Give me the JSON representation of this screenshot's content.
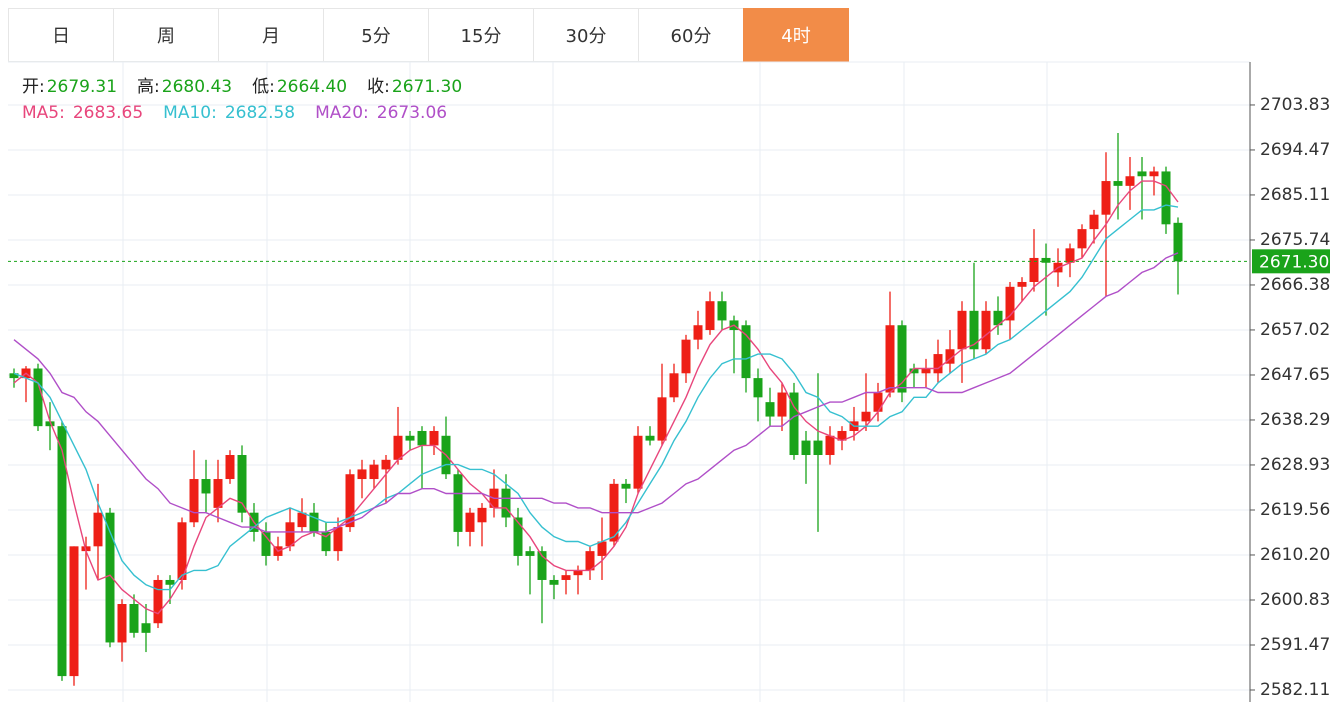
{
  "tabs": [
    "日",
    "周",
    "月",
    "5分",
    "15分",
    "30分",
    "60分",
    "4时"
  ],
  "active_tab": 7,
  "chart_data": {
    "type": "candlestick",
    "info": [
      {
        "label": "开:",
        "value": "2679.31"
      },
      {
        "label": "高:",
        "value": "2680.43"
      },
      {
        "label": "低:",
        "value": "2664.40"
      },
      {
        "label": "收:",
        "value": "2671.30"
      }
    ],
    "up_color": "#ee1f16",
    "down_color": "#1aa31a",
    "ylim": [
      2579.61,
      2712.77
    ],
    "yticks": [
      2703.83,
      2694.47,
      2685.11,
      2675.74,
      2666.38,
      2657.02,
      2647.65,
      2638.29,
      2628.93,
      2619.56,
      {
        "value": 2610.2,
        "label": "2610.20"
      },
      2600.83,
      2591.47,
      2582.11
    ],
    "grid": true,
    "last_price": {
      "value": 2671.3,
      "label": "2671.30"
    },
    "candles": [
      {
        "open": 2648,
        "high": 2649,
        "low": 2645,
        "close": 2647
      },
      {
        "open": 2647,
        "high": 2649.5,
        "low": 2642,
        "close": 2649
      },
      {
        "open": 2649,
        "high": 2650,
        "low": 2636,
        "close": 2637
      },
      {
        "open": 2638,
        "high": 2642,
        "low": 2632,
        "close": 2637
      },
      {
        "open": 2637,
        "high": 2638,
        "low": 2584,
        "close": 2585
      },
      {
        "open": 2585,
        "high": 2612,
        "low": 2583,
        "close": 2612
      },
      {
        "open": 2611,
        "high": 2614,
        "low": 2603,
        "close": 2612
      },
      {
        "open": 2612,
        "high": 2625,
        "low": 2605,
        "close": 2619
      },
      {
        "open": 2619,
        "high": 2620,
        "low": 2591,
        "close": 2592
      },
      {
        "open": 2592,
        "high": 2601,
        "low": 2588,
        "close": 2600
      },
      {
        "open": 2600,
        "high": 2602,
        "low": 2593,
        "close": 2594
      },
      {
        "open": 2596,
        "high": 2600,
        "low": 2590,
        "close": 2594
      },
      {
        "open": 2596,
        "high": 2606,
        "low": 2595,
        "close": 2605
      },
      {
        "open": 2605,
        "high": 2606,
        "low": 2600,
        "close": 2604
      },
      {
        "open": 2605,
        "high": 2618,
        "low": 2603,
        "close": 2617
      },
      {
        "open": 2617,
        "high": 2632,
        "low": 2616,
        "close": 2626
      },
      {
        "open": 2626,
        "high": 2630,
        "low": 2619,
        "close": 2623
      },
      {
        "open": 2620,
        "high": 2630,
        "low": 2617,
        "close": 2626
      },
      {
        "open": 2626,
        "high": 2632,
        "low": 2625,
        "close": 2631
      },
      {
        "open": 2631,
        "high": 2633,
        "low": 2617,
        "close": 2619
      },
      {
        "open": 2619,
        "high": 2621,
        "low": 2613,
        "close": 2615
      },
      {
        "open": 2615,
        "high": 2617,
        "low": 2608,
        "close": 2610
      },
      {
        "open": 2610,
        "high": 2614,
        "low": 2609,
        "close": 2612
      },
      {
        "open": 2612,
        "high": 2620,
        "low": 2611,
        "close": 2617
      },
      {
        "open": 2616,
        "high": 2622,
        "low": 2615,
        "close": 2619
      },
      {
        "open": 2619,
        "high": 2621,
        "low": 2614,
        "close": 2615
      },
      {
        "open": 2615,
        "high": 2617,
        "low": 2610,
        "close": 2611
      },
      {
        "open": 2611,
        "high": 2618,
        "low": 2609,
        "close": 2616
      },
      {
        "open": 2616,
        "high": 2628,
        "low": 2615,
        "close": 2627
      },
      {
        "open": 2626,
        "high": 2630,
        "low": 2622,
        "close": 2628
      },
      {
        "open": 2626,
        "high": 2630,
        "low": 2624,
        "close": 2629
      },
      {
        "open": 2628,
        "high": 2631,
        "low": 2621,
        "close": 2630
      },
      {
        "open": 2630,
        "high": 2641,
        "low": 2629,
        "close": 2635
      },
      {
        "open": 2635,
        "high": 2636,
        "low": 2632,
        "close": 2634
      },
      {
        "open": 2636,
        "high": 2637,
        "low": 2624,
        "close": 2633
      },
      {
        "open": 2633,
        "high": 2637,
        "low": 2631,
        "close": 2636
      },
      {
        "open": 2635,
        "high": 2639,
        "low": 2626,
        "close": 2627
      },
      {
        "open": 2627,
        "high": 2628,
        "low": 2612,
        "close": 2615
      },
      {
        "open": 2615,
        "high": 2620,
        "low": 2612,
        "close": 2619
      },
      {
        "open": 2617,
        "high": 2621,
        "low": 2612,
        "close": 2620
      },
      {
        "open": 2620,
        "high": 2628,
        "low": 2618,
        "close": 2624
      },
      {
        "open": 2624,
        "high": 2627,
        "low": 2616,
        "close": 2618
      },
      {
        "open": 2618,
        "high": 2620,
        "low": 2608,
        "close": 2610
      },
      {
        "open": 2611,
        "high": 2612,
        "low": 2602,
        "close": 2610
      },
      {
        "open": 2611,
        "high": 2612,
        "low": 2596,
        "close": 2605
      },
      {
        "open": 2605,
        "high": 2606,
        "low": 2601,
        "close": 2604
      },
      {
        "open": 2605,
        "high": 2607,
        "low": 2602,
        "close": 2606
      },
      {
        "open": 2606,
        "high": 2608,
        "low": 2602,
        "close": 2607
      },
      {
        "open": 2607,
        "high": 2612,
        "low": 2605,
        "close": 2611
      },
      {
        "open": 2610,
        "high": 2618,
        "low": 2605,
        "close": 2613
      },
      {
        "open": 2613,
        "high": 2626,
        "low": 2612,
        "close": 2625
      },
      {
        "open": 2625,
        "high": 2626,
        "low": 2621,
        "close": 2624
      },
      {
        "open": 2624,
        "high": 2637,
        "low": 2623,
        "close": 2635
      },
      {
        "open": 2635,
        "high": 2637,
        "low": 2633,
        "close": 2634
      },
      {
        "open": 2634,
        "high": 2650,
        "low": 2633,
        "close": 2643
      },
      {
        "open": 2643,
        "high": 2650,
        "low": 2642,
        "close": 2648
      },
      {
        "open": 2648,
        "high": 2656,
        "low": 2646,
        "close": 2655
      },
      {
        "open": 2655,
        "high": 2661,
        "low": 2653,
        "close": 2658
      },
      {
        "open": 2657,
        "high": 2665,
        "low": 2656,
        "close": 2663
      },
      {
        "open": 2663,
        "high": 2665,
        "low": 2657,
        "close": 2659
      },
      {
        "open": 2659,
        "high": 2660,
        "low": 2648,
        "close": 2657
      },
      {
        "open": 2658,
        "high": 2659,
        "low": 2644,
        "close": 2647
      },
      {
        "open": 2647,
        "high": 2649,
        "low": 2638,
        "close": 2643
      },
      {
        "open": 2642,
        "high": 2645,
        "low": 2637,
        "close": 2639
      },
      {
        "open": 2639,
        "high": 2646,
        "low": 2636,
        "close": 2644
      },
      {
        "open": 2644,
        "high": 2646,
        "low": 2630,
        "close": 2631
      },
      {
        "open": 2634,
        "high": 2636,
        "low": 2625,
        "close": 2631
      },
      {
        "open": 2634,
        "high": 2648,
        "low": 2615,
        "close": 2631
      },
      {
        "open": 2631,
        "high": 2637,
        "low": 2629,
        "close": 2635
      },
      {
        "open": 2634,
        "high": 2637,
        "low": 2632,
        "close": 2636
      },
      {
        "open": 2636,
        "high": 2641,
        "low": 2634,
        "close": 2638
      },
      {
        "open": 2638,
        "high": 2648,
        "low": 2636,
        "close": 2640
      },
      {
        "open": 2640,
        "high": 2646,
        "low": 2638,
        "close": 2644
      },
      {
        "open": 2644,
        "high": 2665,
        "low": 2643,
        "close": 2658
      },
      {
        "open": 2658,
        "high": 2659,
        "low": 2642,
        "close": 2644
      },
      {
        "open": 2649,
        "high": 2650,
        "low": 2645,
        "close": 2648
      },
      {
        "open": 2648,
        "high": 2651,
        "low": 2645,
        "close": 2649
      },
      {
        "open": 2648,
        "high": 2655,
        "low": 2646,
        "close": 2652
      },
      {
        "open": 2650,
        "high": 2657,
        "low": 2648,
        "close": 2653
      },
      {
        "open": 2653,
        "high": 2663,
        "low": 2646,
        "close": 2661
      },
      {
        "open": 2661,
        "high": 2671,
        "low": 2651,
        "close": 2653
      },
      {
        "open": 2653,
        "high": 2663,
        "low": 2652,
        "close": 2661
      },
      {
        "open": 2661,
        "high": 2664,
        "low": 2656,
        "close": 2658
      },
      {
        "open": 2659,
        "high": 2667,
        "low": 2655,
        "close": 2666
      },
      {
        "open": 2666,
        "high": 2668,
        "low": 2663,
        "close": 2667
      },
      {
        "open": 2667,
        "high": 2678,
        "low": 2665,
        "close": 2672
      },
      {
        "open": 2672,
        "high": 2675,
        "low": 2660,
        "close": 2671
      },
      {
        "open": 2669,
        "high": 2674,
        "low": 2666,
        "close": 2671
      },
      {
        "open": 2671,
        "high": 2675,
        "low": 2668,
        "close": 2674
      },
      {
        "open": 2674,
        "high": 2679,
        "low": 2672,
        "close": 2678
      },
      {
        "open": 2678,
        "high": 2682,
        "low": 2675,
        "close": 2681
      },
      {
        "open": 2681,
        "high": 2694,
        "low": 2664,
        "close": 2688
      },
      {
        "open": 2688,
        "high": 2698,
        "low": 2680,
        "close": 2687
      },
      {
        "open": 2687,
        "high": 2693,
        "low": 2682,
        "close": 2689
      },
      {
        "open": 2690,
        "high": 2693,
        "low": 2680,
        "close": 2689
      },
      {
        "open": 2689,
        "high": 2691,
        "low": 2685,
        "close": 2690
      },
      {
        "open": 2690,
        "high": 2691,
        "low": 2677,
        "close": 2679
      },
      {
        "open": 2679.31,
        "high": 2680.43,
        "low": 2664.4,
        "close": 2671.3
      }
    ],
    "series": [
      {
        "name": "MA5:",
        "label": "2683.65",
        "color": "#e8467c",
        "values": [
          2646,
          2648,
          2646,
          2638,
          2632,
          2621,
          2611,
          2605,
          2606,
          2603,
          2601,
          2599,
          2598,
          2601,
          2605,
          2612,
          2618,
          2620,
          2622,
          2621,
          2617,
          2614,
          2611,
          2612,
          2614,
          2615,
          2614,
          2616,
          2618,
          2621,
          2624,
          2627,
          2630,
          2632,
          2633,
          2633,
          2631,
          2628,
          2625,
          2623,
          2620,
          2620,
          2617,
          2614,
          2610,
          2608,
          2607,
          2607,
          2607,
          2609,
          2612,
          2616,
          2623,
          2628,
          2633,
          2638,
          2643,
          2649,
          2654,
          2657,
          2658,
          2656,
          2653,
          2649,
          2646,
          2641,
          2638,
          2636,
          2635,
          2634,
          2635,
          2637,
          2640,
          2644,
          2646,
          2649,
          2649,
          2649,
          2651,
          2653,
          2654,
          2656,
          2658,
          2660,
          2663,
          2666,
          2668,
          2670,
          2671,
          2672,
          2675.7,
          2679,
          2683,
          2686,
          2688,
          2688,
          2687,
          2683.65
        ]
      },
      {
        "name": "MA10:",
        "label": "2682.58",
        "color": "#36c0d0",
        "values": [
          2648,
          2647,
          2646,
          2643,
          2638,
          2633,
          2628,
          2621,
          2615,
          2609,
          2606,
          2604,
          2603,
          2603,
          2606,
          2607,
          2607,
          2608,
          2612,
          2614,
          2616,
          2618,
          2619,
          2620,
          2619,
          2618,
          2617,
          2617,
          2618,
          2619,
          2620,
          2622,
          2623,
          2625,
          2627,
          2628,
          2629,
          2629,
          2628,
          2628,
          2627,
          2625,
          2623,
          2619,
          2616,
          2614,
          2613,
          2613,
          2612,
          2613,
          2614,
          2617,
          2621,
          2625,
          2629,
          2634,
          2638,
          2643,
          2647,
          2650,
          2651,
          2651,
          2652,
          2652,
          2651,
          2648,
          2644,
          2643,
          2640,
          2639,
          2637,
          2637,
          2637,
          2639,
          2640,
          2643,
          2643,
          2646,
          2648,
          2650,
          2651,
          2652,
          2654,
          2655,
          2657,
          2659,
          2661,
          2663,
          2665,
          2668,
          2672,
          2676,
          2678,
          2680,
          2682,
          2682,
          2683,
          2682.58
        ]
      },
      {
        "name": "MA20:",
        "label": "2673.06",
        "color": "#b04fc8",
        "values": [
          2655,
          2653,
          2651,
          2648,
          2644,
          2643,
          2640,
          2638,
          2635,
          2632,
          2629,
          2626,
          2624,
          2621,
          2620,
          2619,
          2619,
          2618,
          2617,
          2616,
          2616,
          2615,
          2615,
          2615,
          2615,
          2615,
          2615,
          2616,
          2617,
          2618,
          2620,
          2621,
          2623,
          2623,
          2624,
          2624,
          2623,
          2623,
          2623,
          2623,
          2622,
          2622,
          2622,
          2622,
          2622,
          2621,
          2621,
          2620,
          2620,
          2619,
          2619,
          2619,
          2619,
          2620,
          2621,
          2623,
          2625,
          2626,
          2628,
          2630,
          2632,
          2633,
          2635,
          2637,
          2637,
          2639,
          2640,
          2641,
          2642,
          2642,
          2643,
          2644,
          2644,
          2645,
          2645,
          2645,
          2645,
          2644,
          2644,
          2644,
          2645,
          2646,
          2647,
          2648,
          2650,
          2652,
          2654,
          2656,
          2658,
          2660,
          2662,
          2664,
          2665,
          2667,
          2669,
          2670,
          2672,
          2673.06
        ]
      }
    ]
  }
}
